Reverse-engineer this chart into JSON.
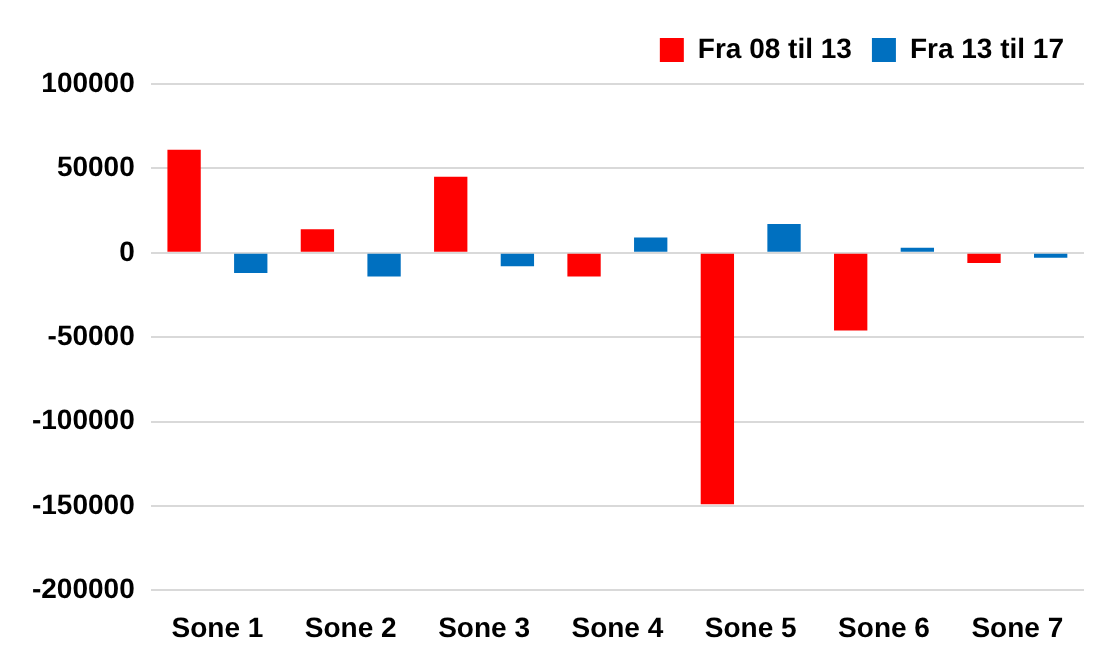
{
  "chart_data": {
    "type": "bar",
    "categories": [
      "Sone 1",
      "Sone 2",
      "Sone 3",
      "Sone 4",
      "Sone 5",
      "Sone 6",
      "Sone 7"
    ],
    "series": [
      {
        "name": "Fra 08 til 13",
        "color": "#ff0000",
        "values": [
          61000,
          14000,
          45000,
          -14000,
          -149000,
          -46000,
          -6000
        ]
      },
      {
        "name": "Fra 13 til 17",
        "color": "#0070c0",
        "values": [
          -12000,
          -14000,
          -8000,
          9000,
          17000,
          3000,
          -3000
        ]
      }
    ],
    "ylim": [
      -200000,
      100000
    ],
    "yticks": [
      -200000,
      -150000,
      -100000,
      -50000,
      0,
      50000,
      100000
    ],
    "grid": "y",
    "legend": "top right"
  }
}
